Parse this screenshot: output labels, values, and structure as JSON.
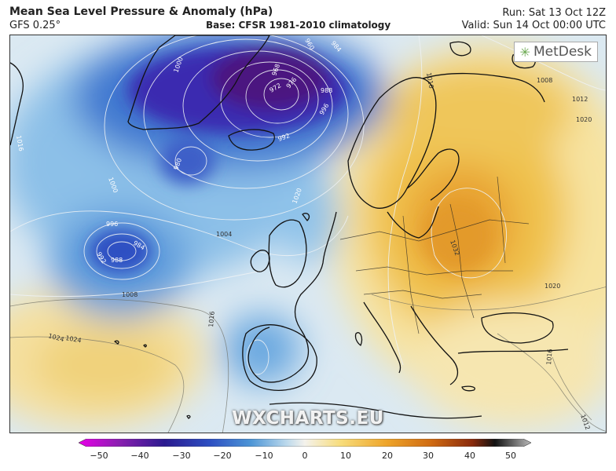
{
  "header": {
    "title": "Mean Sea Level Pressure & Anomaly (hPa)",
    "model": "GFS 0.25°",
    "base": "Base: CFSR 1981-2010 climatology",
    "run": "Run: Sat 13 Oct 12Z",
    "valid": "Valid: Sun 14 Oct 00:00 UTC"
  },
  "logo": {
    "text": "MetDesk",
    "icon": "metdesk-logo-icon"
  },
  "watermark": "WXCHARTS.EU",
  "isobars": {
    "unit": "hPa",
    "labels": [
      "1000",
      "960",
      "984",
      "1016",
      "1008",
      "1012",
      "1016",
      "1020",
      "968",
      "972",
      "976",
      "988",
      "996",
      "992",
      "1024",
      "980",
      "1000",
      "996",
      "1004",
      "992",
      "988",
      "984",
      "1032",
      "1020",
      "1008",
      "1020",
      "1024",
      "1016",
      "1016",
      "1012"
    ]
  },
  "colorbar": {
    "ticks": [
      "−50",
      "−40",
      "−30",
      "−20",
      "−10",
      "0",
      "10",
      "20",
      "30",
      "40",
      "50"
    ],
    "colors": [
      "#e800e8",
      "#7a1fa8",
      "#2a1a8f",
      "#2d4fc2",
      "#4c95d6",
      "#a9cfe8",
      "#f2f0e8",
      "#f7dc7a",
      "#eea52a",
      "#cf6a12",
      "#8a2a0c",
      "#111111",
      "#bbbbbb"
    ]
  },
  "map_colors": {
    "low_core": "#4b1680",
    "deep_low": "#3a2ab0",
    "low": "#3f78d0",
    "low_mid": "#77b3e4",
    "neutral": "#e8eef2",
    "high_edge": "#f7e3a0",
    "high": "#f2c14a",
    "high_core": "#e8a332",
    "coast": "#111111",
    "isobar": "#e8e8e8"
  }
}
